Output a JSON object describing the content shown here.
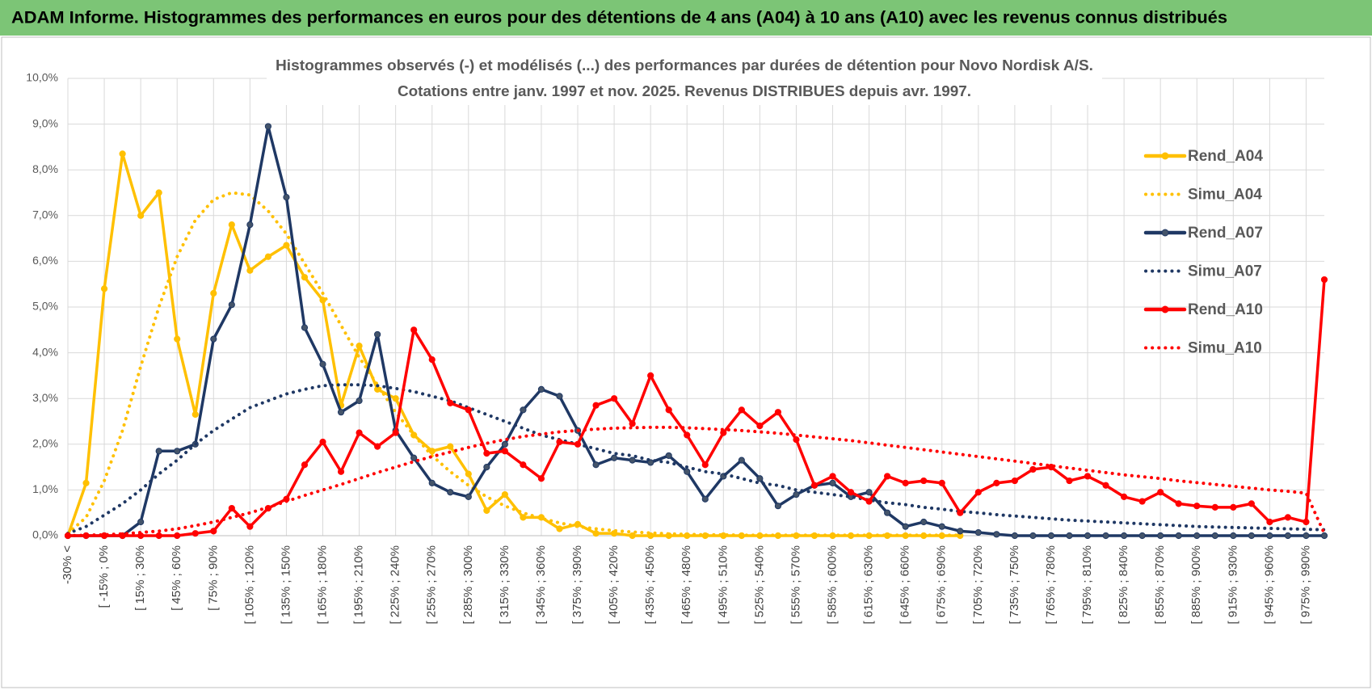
{
  "header": {
    "title": "ADAM Informe. Histogrammes des performances en euros pour des détentions de 4 ans (A04) à 10 ans (A10) avec les revenus connus distribués"
  },
  "chart_data": {
    "type": "line",
    "title": "Histogrammes observés (-) et modélisés (...) des performances par durées de détention pour Novo Nordisk A/S.",
    "subtitle": "Cotations entre janv. 1997 et nov. 2025. Revenus DISTRIBUES depuis avr. 1997.",
    "categories": [
      "-30% <",
      null,
      "[ -15% ; 0%",
      null,
      "[ 15% ; 30%",
      null,
      "[ 45% ; 60%",
      null,
      "[ 75% ; 90%",
      null,
      "[ 105% ; 120%",
      null,
      "[ 135% ; 150%",
      null,
      "[ 165% ; 180%",
      null,
      "[ 195% ; 210%",
      null,
      "[ 225% ; 240%",
      null,
      "[ 255% ; 270%",
      null,
      "[ 285% ; 300%",
      null,
      "[ 315% ; 330%",
      null,
      "[ 345% ; 360%",
      null,
      "[ 375% ; 390%",
      null,
      "[ 405% ; 420%",
      null,
      "[ 435% ; 450%",
      null,
      "[ 465% ; 480%",
      null,
      "[ 495% ; 510%",
      null,
      "[ 525% ; 540%",
      null,
      "[ 555% ; 570%",
      null,
      "[ 585% ; 600%",
      null,
      "[ 615% ; 630%",
      null,
      "[ 645% ; 660%",
      null,
      "[ 675% ; 690%",
      null,
      "[ 705% ; 720%",
      null,
      "[ 735% ; 750%",
      null,
      "[ 765% ; 780%",
      null,
      "[ 795% ; 810%",
      null,
      "[ 825% ; 840%",
      null,
      "[ 855% ; 870%",
      null,
      "[ 885% ; 900%",
      null,
      "[ 915% ; 930%",
      null,
      "[ 945% ; 960%",
      null,
      "[ 975% ; 990%",
      null
    ],
    "series": [
      {
        "name": "Rend_A04",
        "color": "#FFC000",
        "line_style": "solid",
        "markers": true,
        "marker_color": "#FFC000",
        "values": [
          0,
          1.15,
          5.4,
          8.35,
          7.0,
          7.5,
          4.3,
          2.65,
          5.3,
          6.8,
          5.8,
          6.1,
          6.35,
          5.65,
          5.15,
          2.85,
          4.15,
          3.2,
          3.0,
          2.2,
          1.85,
          1.95,
          1.35,
          0.55,
          0.9,
          0.4,
          0.4,
          0.15,
          0.25,
          0.05,
          0.05,
          0,
          0,
          0,
          0,
          0,
          0,
          0,
          0,
          0,
          0,
          0,
          0,
          0,
          0,
          0,
          0,
          0,
          0,
          0,
          null,
          null,
          null,
          null,
          null,
          null,
          null,
          null,
          null,
          null,
          null,
          null,
          null,
          null,
          null,
          null,
          null,
          null,
          null,
          null
        ]
      },
      {
        "name": "Simu_A04",
        "color": "#FFC000",
        "line_style": "dotted",
        "markers": false,
        "values": [
          0.05,
          0.4,
          1.2,
          2.3,
          3.7,
          5.0,
          6.1,
          6.9,
          7.35,
          7.5,
          7.45,
          7.1,
          6.6,
          5.95,
          5.3,
          4.6,
          3.9,
          3.3,
          2.7,
          2.2,
          1.75,
          1.4,
          1.1,
          0.85,
          0.65,
          0.5,
          0.38,
          0.28,
          0.2,
          0.15,
          0.11,
          0.08,
          0.06,
          0.04,
          0.03,
          0.02,
          0.02,
          0.01,
          0.01,
          0.01,
          0.01,
          0.01,
          0.01,
          0.01,
          0.01,
          0.01,
          0.01,
          0.01,
          0.01,
          0.01,
          null,
          null,
          null,
          null,
          null,
          null,
          null,
          null,
          null,
          null,
          null,
          null,
          null,
          null,
          null,
          null,
          null,
          null,
          null,
          null
        ]
      },
      {
        "name": "Rend_A07",
        "color": "#1F3864",
        "line_style": "solid",
        "markers": true,
        "marker_color": "#44546A",
        "values": [
          0,
          0,
          0,
          0,
          0.3,
          1.85,
          1.85,
          2.0,
          4.3,
          5.05,
          6.8,
          8.95,
          7.4,
          4.55,
          3.75,
          2.7,
          2.95,
          4.4,
          2.3,
          1.7,
          1.15,
          0.95,
          0.85,
          1.5,
          2.0,
          2.75,
          3.2,
          3.05,
          2.3,
          1.55,
          1.7,
          1.65,
          1.6,
          1.75,
          1.4,
          0.8,
          1.3,
          1.65,
          1.25,
          0.65,
          0.9,
          1.1,
          1.15,
          0.85,
          0.95,
          0.5,
          0.2,
          0.3,
          0.2,
          0.1,
          0.07,
          0.03,
          0,
          0,
          0,
          0,
          0,
          0,
          0,
          0,
          0,
          0,
          0,
          0,
          0,
          0,
          0,
          0,
          0,
          0
        ]
      },
      {
        "name": "Simu_A07",
        "color": "#1F3864",
        "line_style": "dotted",
        "markers": false,
        "values": [
          0.05,
          0.2,
          0.45,
          0.7,
          1.0,
          1.35,
          1.65,
          2.0,
          2.3,
          2.55,
          2.8,
          2.95,
          3.1,
          3.2,
          3.28,
          3.3,
          3.3,
          3.28,
          3.22,
          3.15,
          3.05,
          2.95,
          2.8,
          2.65,
          2.5,
          2.35,
          2.2,
          2.1,
          2.0,
          1.9,
          1.8,
          1.75,
          1.65,
          1.6,
          1.5,
          1.4,
          1.35,
          1.25,
          1.15,
          1.1,
          1.0,
          0.95,
          0.9,
          0.85,
          0.78,
          0.72,
          0.68,
          0.62,
          0.58,
          0.53,
          0.5,
          0.46,
          0.43,
          0.4,
          0.37,
          0.34,
          0.32,
          0.3,
          0.28,
          0.26,
          0.24,
          0.22,
          0.2,
          0.19,
          0.18,
          0.17,
          0.16,
          0.15,
          0.14,
          0.13
        ]
      },
      {
        "name": "Rend_A10",
        "color": "#FF0000",
        "line_style": "solid",
        "markers": true,
        "marker_color": "#FF0000",
        "values": [
          0,
          0,
          0,
          0,
          0,
          0,
          0,
          0.05,
          0.1,
          0.6,
          0.2,
          0.6,
          0.8,
          1.55,
          2.05,
          1.4,
          2.25,
          1.95,
          2.25,
          4.5,
          3.85,
          2.9,
          2.75,
          1.8,
          1.85,
          1.55,
          1.25,
          2.05,
          2.0,
          2.85,
          3.0,
          2.45,
          3.5,
          2.75,
          2.2,
          1.55,
          2.25,
          2.75,
          2.4,
          2.7,
          2.1,
          1.1,
          1.3,
          0.95,
          0.75,
          1.3,
          1.15,
          1.2,
          1.15,
          0.5,
          0.95,
          1.15,
          1.2,
          1.45,
          1.5,
          1.2,
          1.3,
          1.1,
          0.85,
          0.75,
          0.95,
          0.7,
          0.65,
          0.62,
          0.62,
          0.7,
          0.3,
          0.4,
          0.3,
          5.6
        ]
      },
      {
        "name": "Simu_A10",
        "color": "#FF0000",
        "line_style": "dotted",
        "markers": false,
        "values": [
          0,
          0.01,
          0.02,
          0.04,
          0.07,
          0.1,
          0.15,
          0.22,
          0.3,
          0.4,
          0.5,
          0.62,
          0.75,
          0.88,
          1.0,
          1.12,
          1.25,
          1.38,
          1.5,
          1.62,
          1.73,
          1.83,
          1.93,
          2.02,
          2.1,
          2.17,
          2.22,
          2.27,
          2.3,
          2.33,
          2.35,
          2.36,
          2.37,
          2.37,
          2.36,
          2.34,
          2.32,
          2.3,
          2.27,
          2.24,
          2.2,
          2.16,
          2.12,
          2.08,
          2.03,
          1.98,
          1.93,
          1.88,
          1.83,
          1.78,
          1.73,
          1.68,
          1.63,
          1.58,
          1.53,
          1.48,
          1.43,
          1.38,
          1.33,
          1.29,
          1.25,
          1.2,
          1.16,
          1.12,
          1.08,
          1.04,
          1.0,
          0.97,
          0.93,
          0.05
        ]
      }
    ],
    "ylim": [
      0,
      10
    ],
    "yticks": [
      {
        "value": 0,
        "label": "0,0%"
      },
      {
        "value": 1,
        "label": "1,0%"
      },
      {
        "value": 2,
        "label": "2,0%"
      },
      {
        "value": 3,
        "label": "3,0%"
      },
      {
        "value": 4,
        "label": "4,0%"
      },
      {
        "value": 5,
        "label": "5,0%"
      },
      {
        "value": 6,
        "label": "6,0%"
      },
      {
        "value": 7,
        "label": "7,0%"
      },
      {
        "value": 8,
        "label": "8,0%"
      },
      {
        "value": 9,
        "label": "9,0%"
      },
      {
        "value": 10,
        "label": "10,0%"
      }
    ],
    "grid": true,
    "legend": "upper right"
  }
}
